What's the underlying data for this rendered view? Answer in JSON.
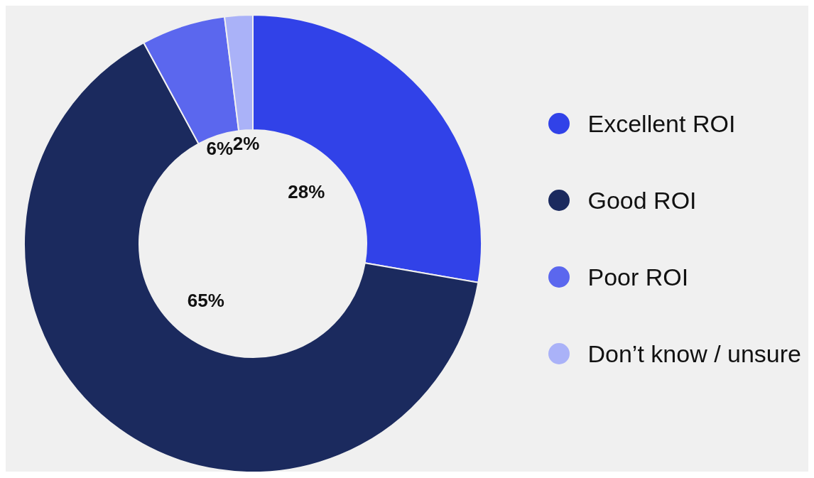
{
  "chart_data": {
    "type": "donut",
    "categories": [
      "Excellent ROI",
      "Good ROI",
      "Poor ROI",
      "Don’t know / unsure"
    ],
    "values": [
      28,
      65,
      6,
      2
    ],
    "colors": [
      "#3142e8",
      "#1b2a5e",
      "#5b67ee",
      "#aab2f8"
    ],
    "value_labels": [
      "28%",
      "65%",
      "6%",
      "2%"
    ],
    "legend": "right"
  }
}
